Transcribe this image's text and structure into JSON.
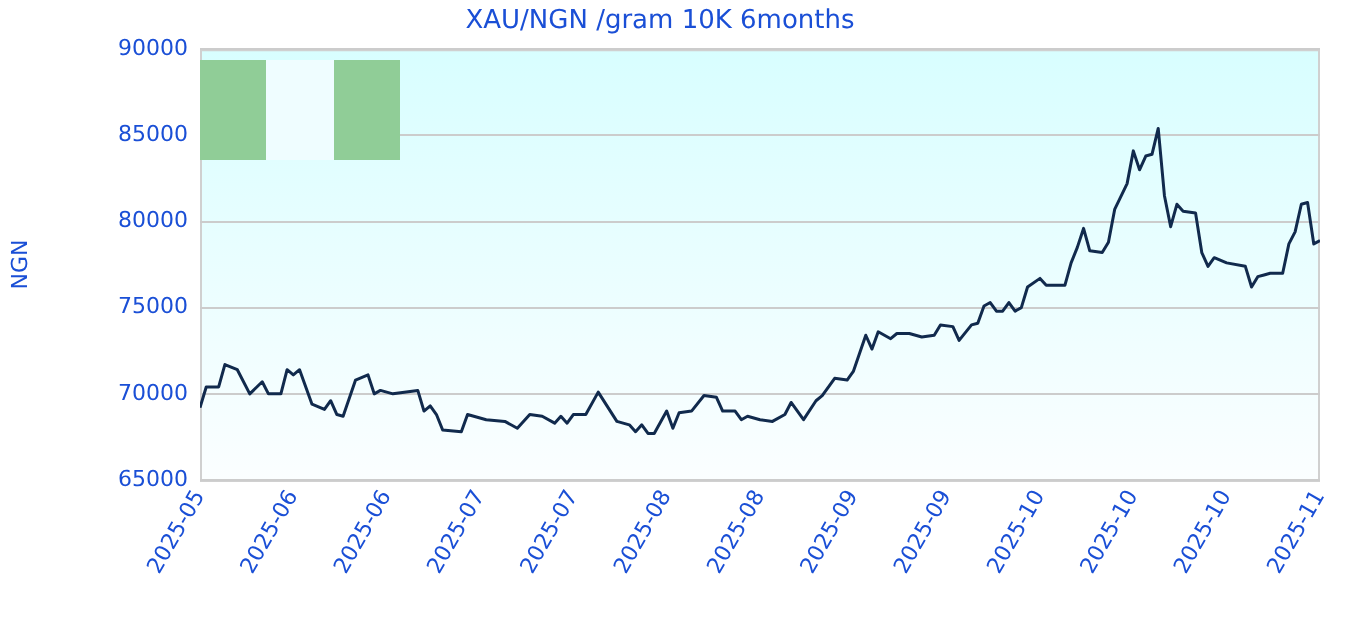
{
  "chart_data": {
    "type": "line",
    "title": "XAU/NGN /gram 10K 6months",
    "ylabel": "NGN",
    "xlim": [
      "2025-05-19",
      "2025-11-15"
    ],
    "xticks": [
      {
        "value": "2025-05-19",
        "label": "2025-05"
      },
      {
        "value": "2025-06-03",
        "label": "2025-06"
      },
      {
        "value": "2025-06-18",
        "label": "2025-06"
      },
      {
        "value": "2025-07-03",
        "label": "2025-07"
      },
      {
        "value": "2025-07-18",
        "label": "2025-07"
      },
      {
        "value": "2025-08-02",
        "label": "2025-08"
      },
      {
        "value": "2025-08-17",
        "label": "2025-08"
      },
      {
        "value": "2025-09-01",
        "label": "2025-09"
      },
      {
        "value": "2025-09-16",
        "label": "2025-09"
      },
      {
        "value": "2025-10-01",
        "label": "2025-10"
      },
      {
        "value": "2025-10-16",
        "label": "2025-10"
      },
      {
        "value": "2025-10-31",
        "label": "2025-10"
      },
      {
        "value": "2025-11-15",
        "label": "2025-11"
      }
    ],
    "ylim": [
      65000,
      90000
    ],
    "yticks": [
      65000,
      70000,
      75000,
      80000,
      85000,
      90000
    ],
    "grid": "y",
    "legend": false,
    "marker": "none",
    "line_style": "solid",
    "x": [
      "2025-05-19",
      "2025-05-20",
      "2025-05-22",
      "2025-05-23",
      "2025-05-25",
      "2025-05-27",
      "2025-05-29",
      "2025-05-30",
      "2025-06-01",
      "2025-06-02",
      "2025-06-03",
      "2025-06-04",
      "2025-06-06",
      "2025-06-08",
      "2025-06-09",
      "2025-06-10",
      "2025-06-11",
      "2025-06-13",
      "2025-06-15",
      "2025-06-16",
      "2025-06-17",
      "2025-06-19",
      "2025-06-23",
      "2025-06-24",
      "2025-06-25",
      "2025-06-26",
      "2025-06-27",
      "2025-06-30",
      "2025-07-01",
      "2025-07-04",
      "2025-07-07",
      "2025-07-09",
      "2025-07-11",
      "2025-07-13",
      "2025-07-15",
      "2025-07-16",
      "2025-07-17",
      "2025-07-18",
      "2025-07-20",
      "2025-07-22",
      "2025-07-25",
      "2025-07-27",
      "2025-07-28",
      "2025-07-29",
      "2025-07-30",
      "2025-07-31",
      "2025-08-02",
      "2025-08-03",
      "2025-08-04",
      "2025-08-06",
      "2025-08-08",
      "2025-08-10",
      "2025-08-11",
      "2025-08-13",
      "2025-08-14",
      "2025-08-15",
      "2025-08-17",
      "2025-08-19",
      "2025-08-21",
      "2025-08-22",
      "2025-08-24",
      "2025-08-26",
      "2025-08-27",
      "2025-08-29",
      "2025-08-31",
      "2025-09-01",
      "2025-09-03",
      "2025-09-04",
      "2025-09-05",
      "2025-09-07",
      "2025-09-08",
      "2025-09-10",
      "2025-09-12",
      "2025-09-14",
      "2025-09-15",
      "2025-09-17",
      "2025-09-18",
      "2025-09-20",
      "2025-09-21",
      "2025-09-22",
      "2025-09-23",
      "2025-09-24",
      "2025-09-25",
      "2025-09-26",
      "2025-09-27",
      "2025-09-28",
      "2025-09-29",
      "2025-10-01",
      "2025-10-02",
      "2025-10-05",
      "2025-10-06",
      "2025-10-07",
      "2025-10-08",
      "2025-10-09",
      "2025-10-11",
      "2025-10-12",
      "2025-10-13",
      "2025-10-15",
      "2025-10-16",
      "2025-10-17",
      "2025-10-18",
      "2025-10-19",
      "2025-10-20",
      "2025-10-21",
      "2025-10-22",
      "2025-10-23",
      "2025-10-24",
      "2025-10-26",
      "2025-10-27",
      "2025-10-28",
      "2025-10-29",
      "2025-10-31",
      "2025-11-03",
      "2025-11-04",
      "2025-11-05",
      "2025-11-06",
      "2025-11-07",
      "2025-11-09",
      "2025-11-10",
      "2025-11-11",
      "2025-11-12",
      "2025-11-13",
      "2025-11-14",
      "2025-11-15"
    ],
    "series": [
      {
        "color": "#112a4d",
        "values": [
          69200,
          70400,
          70400,
          71700,
          71400,
          70000,
          70700,
          70000,
          70000,
          71400,
          71100,
          71400,
          69400,
          69100,
          69600,
          68800,
          68700,
          70800,
          71100,
          70000,
          70200,
          70000,
          70200,
          69000,
          69300,
          68800,
          67900,
          67800,
          68800,
          68500,
          68400,
          68000,
          68800,
          68700,
          68300,
          68700,
          68300,
          68800,
          68800,
          70100,
          68400,
          68200,
          67800,
          68200,
          67700,
          67700,
          69000,
          68000,
          68900,
          69000,
          69900,
          69800,
          69000,
          69000,
          68500,
          68700,
          68500,
          68400,
          68800,
          69500,
          68500,
          69600,
          69900,
          70900,
          70800,
          71300,
          73400,
          72600,
          73600,
          73200,
          73500,
          73500,
          73300,
          73400,
          74000,
          73900,
          73100,
          74000,
          74100,
          75100,
          75300,
          74800,
          74800,
          75300,
          74800,
          75000,
          76200,
          76700,
          76300,
          76300,
          77600,
          78500,
          79600,
          78300,
          78200,
          78800,
          80700,
          82200,
          84100,
          83000,
          83800,
          83900,
          85400,
          81500,
          79700,
          81000,
          80600,
          80500,
          78200,
          77400,
          77900,
          77600,
          77400,
          76200,
          76800,
          76900,
          77000,
          77000,
          78700,
          79400,
          81000,
          81100,
          78700,
          78900
        ]
      }
    ]
  }
}
